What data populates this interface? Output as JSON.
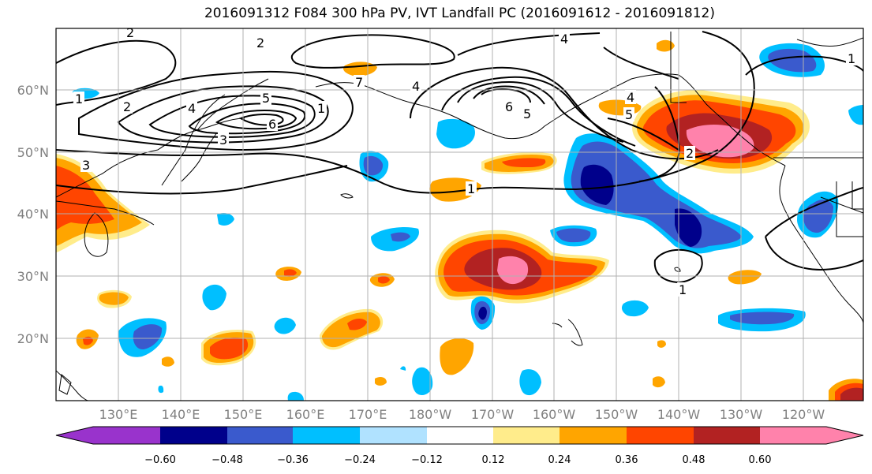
{
  "title": "2016091312 F084 300 hPa PV, IVT Landfall PC (2016091612 - 2016091812)",
  "lat_labels": [
    "60°N",
    "50°N",
    "40°N",
    "30°N",
    "20°N"
  ],
  "lon_labels": [
    "130°E",
    "140°E",
    "150°E",
    "160°E",
    "170°E",
    "180°W",
    "170°W",
    "160°W",
    "150°W",
    "140°W",
    "130°W",
    "120°W"
  ],
  "colorbar": {
    "tick_labels": [
      "−0.60",
      "−0.48",
      "−0.36",
      "−0.24",
      "−0.12",
      "0.12",
      "0.24",
      "0.36",
      "0.48",
      "0.60"
    ],
    "colors": [
      "#9933cc",
      "#00008b",
      "#3a5acd",
      "#00bfff",
      "#b0e2ff",
      "#ffffff",
      "#ffec8b",
      "#ffa500",
      "#ff4500",
      "#b22222",
      "#ff82ab"
    ]
  },
  "contour_labels": [
    "2",
    "4",
    "1",
    "2",
    "4",
    "6",
    "3",
    "3",
    "1",
    "5",
    "6",
    "5",
    "4",
    "5",
    "2",
    "1",
    "1",
    "1",
    "2",
    "4",
    "7"
  ]
}
